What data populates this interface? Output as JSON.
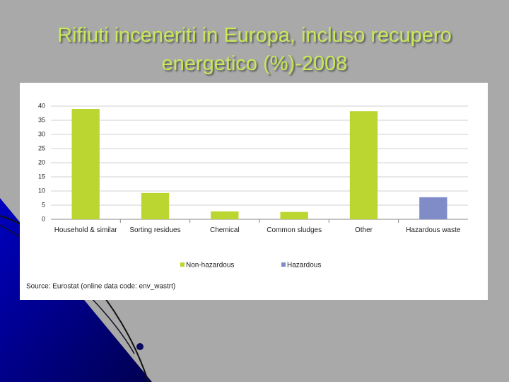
{
  "chart_data": {
    "type": "bar",
    "title": "Rifiuti inceneriti in Europa, incluso recupero energetico (%)-2008",
    "categories": [
      "Household & similar",
      "Sorting residues",
      "Chemical",
      "Common sludges",
      "Other",
      "Hazardous waste"
    ],
    "series": [
      {
        "name": "Non-hazardous",
        "color": "#bcd631",
        "values": [
          39,
          9.3,
          2.8,
          2.6,
          38.2,
          null
        ]
      },
      {
        "name": "Hazardous",
        "color": "#7f8cc8",
        "values": [
          null,
          null,
          null,
          null,
          null,
          7.8
        ]
      }
    ],
    "ylim": [
      0,
      40
    ],
    "yticks": [
      0,
      5,
      10,
      15,
      20,
      25,
      30,
      35,
      40
    ],
    "grid": true,
    "source": "Source: Eurostat (online data code: env_wastrt)"
  }
}
